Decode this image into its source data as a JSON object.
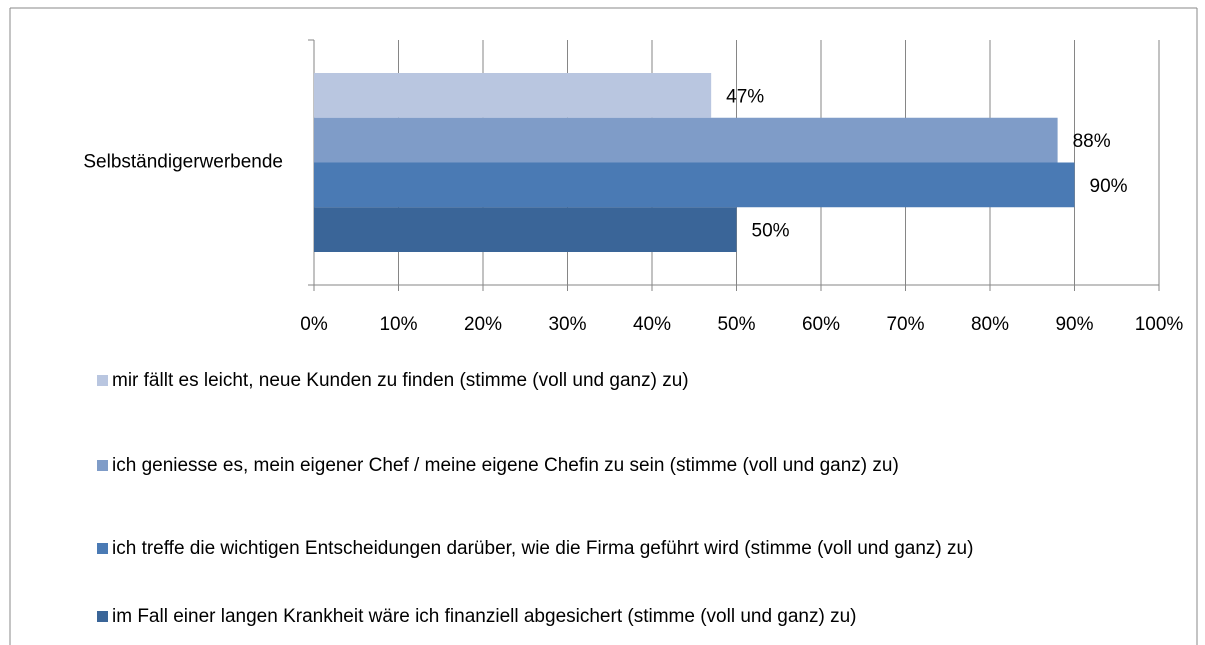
{
  "chart_data": {
    "type": "bar",
    "orientation": "horizontal",
    "categories": [
      "Selbständigerwerbende"
    ],
    "series": [
      {
        "name": "mir fällt es leicht, neue Kunden zu finden (stimme (voll und ganz) zu)",
        "color": "#b9c6e0",
        "values": [
          47
        ],
        "value_labels": [
          "47%"
        ]
      },
      {
        "name": "ich geniesse es, mein eigener Chef / meine eigene Chefin zu sein (stimme (voll und ganz) zu)",
        "color": "#7f9cc8",
        "values": [
          88
        ],
        "value_labels": [
          "88%"
        ]
      },
      {
        "name": "ich treffe die wichtigen Entscheidungen darüber, wie die Firma geführt wird (stimme (voll und ganz) zu)",
        "color": "#4a7ab4",
        "values": [
          90
        ],
        "value_labels": [
          "90%"
        ]
      },
      {
        "name": "im Fall einer langen Krankheit wäre ich finanziell abgesichert (stimme (voll und ganz) zu)",
        "color": "#3a6598",
        "values": [
          50
        ],
        "value_labels": [
          "50%"
        ]
      }
    ],
    "xlim": [
      0,
      100
    ],
    "xticks": [
      {
        "value": 0,
        "label": "0%"
      },
      {
        "value": 10,
        "label": "10%"
      },
      {
        "value": 20,
        "label": "20%"
      },
      {
        "value": 30,
        "label": "30%"
      },
      {
        "value": 40,
        "label": "40%"
      },
      {
        "value": 50,
        "label": "50%"
      },
      {
        "value": 60,
        "label": "60%"
      },
      {
        "value": 70,
        "label": "70%"
      },
      {
        "value": 80,
        "label": "80%"
      },
      {
        "value": 90,
        "label": "90%"
      },
      {
        "value": 100,
        "label": "100%"
      }
    ],
    "grid": true
  }
}
